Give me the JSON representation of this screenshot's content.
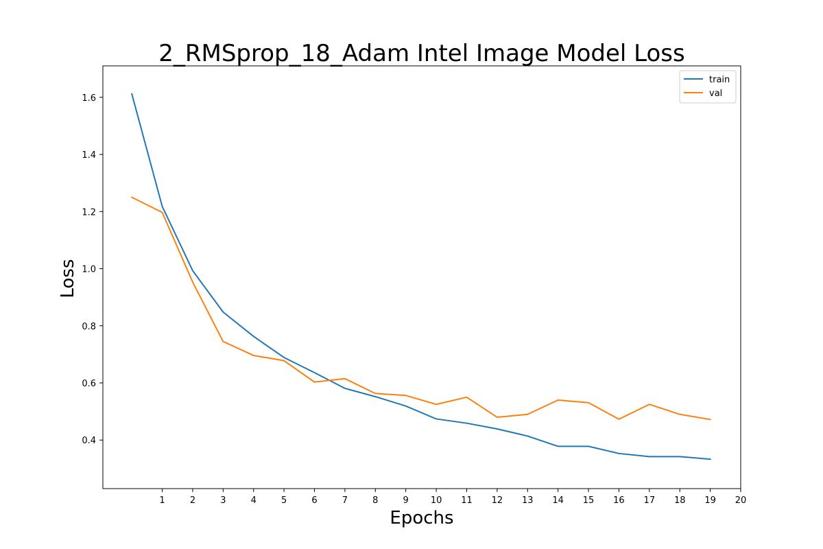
{
  "chart_data": {
    "type": "line",
    "title": "2_RMSprop_18_Adam Intel Image Model Loss",
    "xlabel": "Epochs",
    "ylabel": "Loss",
    "x": [
      0,
      1,
      2,
      3,
      4,
      5,
      6,
      7,
      8,
      9,
      10,
      11,
      12,
      13,
      14,
      15,
      16,
      17,
      18,
      19
    ],
    "xticks": [
      1,
      2,
      3,
      4,
      5,
      6,
      7,
      8,
      9,
      10,
      11,
      12,
      13,
      14,
      15,
      16,
      17,
      18,
      19,
      20
    ],
    "yticks": [
      0.4,
      0.6,
      0.8,
      1.0,
      1.2,
      1.4,
      1.6
    ],
    "xlim": [
      -0.95,
      20
    ],
    "ylim": [
      0.23,
      1.71
    ],
    "grid": false,
    "legend_position": "upper right",
    "series": [
      {
        "name": "train",
        "color": "#1f77b4",
        "values": [
          1.612,
          1.218,
          0.993,
          0.848,
          0.763,
          0.689,
          0.636,
          0.581,
          0.552,
          0.519,
          0.474,
          0.459,
          0.439,
          0.414,
          0.378,
          0.378,
          0.353,
          0.342,
          0.342,
          0.333
        ]
      },
      {
        "name": "val",
        "color": "#ff7f0e",
        "values": [
          1.25,
          1.197,
          0.953,
          0.745,
          0.696,
          0.678,
          0.603,
          0.615,
          0.563,
          0.556,
          0.525,
          0.55,
          0.48,
          0.49,
          0.54,
          0.531,
          0.473,
          0.525,
          0.49,
          0.472
        ]
      }
    ]
  }
}
